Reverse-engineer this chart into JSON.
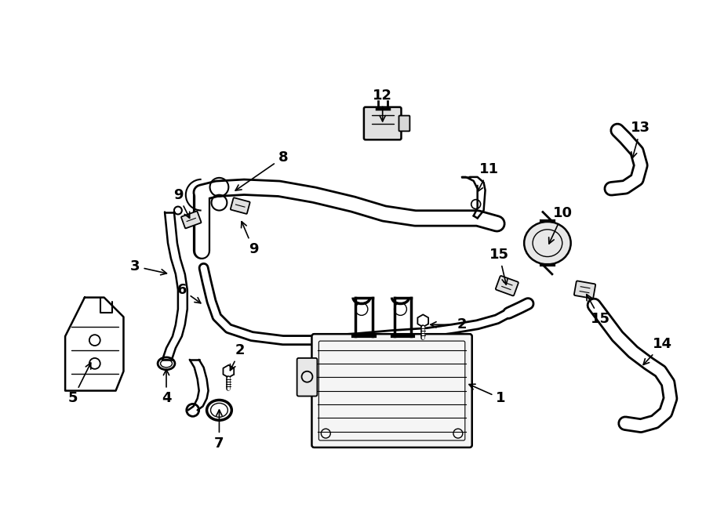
{
  "background_color": "#ffffff",
  "line_color": "#000000",
  "fig_width": 9.0,
  "fig_height": 6.61,
  "dpi": 100,
  "lw_hose_large": 16,
  "lw_hose_med": 10,
  "lw_hose_small": 6,
  "lw_part": 1.5,
  "hose_white_sub": 4.0,
  "label_fontsize": 13
}
